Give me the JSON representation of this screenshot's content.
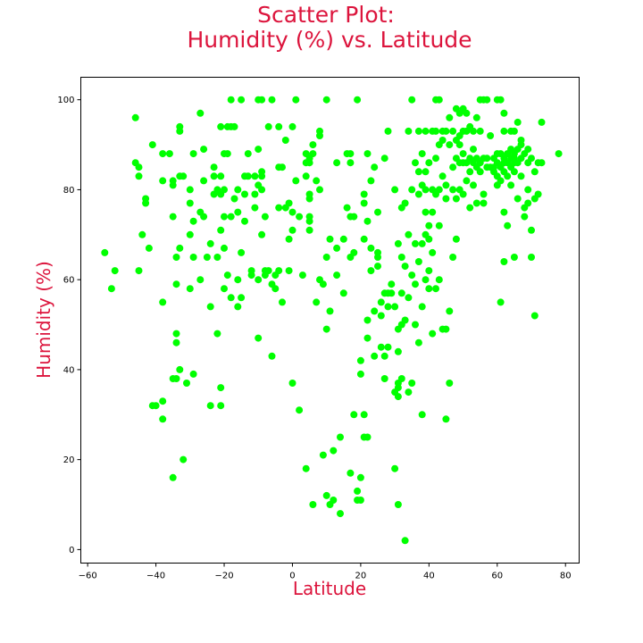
{
  "chart_data": {
    "type": "scatter",
    "title_line1": "Scatter Plot:",
    "title_line2": "Humidity (%) vs. Latitude",
    "xlabel": "Latitude",
    "ylabel": "Humidity (%)",
    "xlim": [
      -62,
      84
    ],
    "ylim": [
      -3,
      105
    ],
    "xticks": [
      -60,
      -40,
      -20,
      0,
      20,
      40,
      60,
      80
    ],
    "yticks": [
      0,
      20,
      40,
      60,
      80,
      100
    ],
    "grid": false,
    "colors": {
      "label": "#dc143c",
      "marker": "#00ff00",
      "axis": "#000000"
    },
    "points": [
      [
        -55,
        66
      ],
      [
        -53,
        58
      ],
      [
        -52,
        62
      ],
      [
        -46,
        96
      ],
      [
        -46,
        86
      ],
      [
        -45,
        85
      ],
      [
        -45,
        83
      ],
      [
        -45,
        62
      ],
      [
        -44,
        70
      ],
      [
        -43,
        78
      ],
      [
        -43,
        77
      ],
      [
        -42,
        67
      ],
      [
        -41,
        90
      ],
      [
        -41,
        32
      ],
      [
        -40,
        32
      ],
      [
        -38,
        88
      ],
      [
        -38,
        82
      ],
      [
        -38,
        55
      ],
      [
        -38,
        33
      ],
      [
        -38,
        29
      ],
      [
        -36,
        88
      ],
      [
        -35,
        82
      ],
      [
        -35,
        81
      ],
      [
        -35,
        74
      ],
      [
        -35,
        38
      ],
      [
        -35,
        16
      ],
      [
        -34,
        38
      ],
      [
        -34,
        65
      ],
      [
        -34,
        59
      ],
      [
        -34,
        48
      ],
      [
        -34,
        46
      ],
      [
        -33,
        94
      ],
      [
        -33,
        93
      ],
      [
        -33,
        83
      ],
      [
        -33,
        67
      ],
      [
        -33,
        40
      ],
      [
        -32,
        83
      ],
      [
        -32,
        20
      ],
      [
        -31,
        37
      ],
      [
        -30,
        80
      ],
      [
        -30,
        77
      ],
      [
        -30,
        70
      ],
      [
        -30,
        58
      ],
      [
        -29,
        88
      ],
      [
        -29,
        73
      ],
      [
        -29,
        65
      ],
      [
        -29,
        39
      ],
      [
        -27,
        97
      ],
      [
        -27,
        75
      ],
      [
        -27,
        60
      ],
      [
        -26,
        89
      ],
      [
        -26,
        82
      ],
      [
        -26,
        74
      ],
      [
        -25,
        65
      ],
      [
        -24,
        68
      ],
      [
        -24,
        32
      ],
      [
        -24,
        54
      ],
      [
        -23,
        83
      ],
      [
        -23,
        79
      ],
      [
        -23,
        85
      ],
      [
        -22,
        80
      ],
      [
        -22,
        65
      ],
      [
        -22,
        48
      ],
      [
        -21,
        94
      ],
      [
        -21,
        83
      ],
      [
        -21,
        79
      ],
      [
        -21,
        71
      ],
      [
        -21,
        36
      ],
      [
        -21,
        32
      ],
      [
        -20,
        88
      ],
      [
        -20,
        80
      ],
      [
        -20,
        74
      ],
      [
        -20,
        67
      ],
      [
        -20,
        58
      ],
      [
        -19,
        94
      ],
      [
        -19,
        88
      ],
      [
        -19,
        61
      ],
      [
        -18,
        100
      ],
      [
        -18,
        94
      ],
      [
        -18,
        74
      ],
      [
        -18,
        56
      ],
      [
        -17,
        94
      ],
      [
        -17,
        78
      ],
      [
        -16,
        80
      ],
      [
        -16,
        75
      ],
      [
        -16,
        60
      ],
      [
        -16,
        54
      ],
      [
        -15,
        100
      ],
      [
        -15,
        56
      ],
      [
        -15,
        66
      ],
      [
        -14,
        83
      ],
      [
        -14,
        79
      ],
      [
        -14,
        73
      ],
      [
        -13,
        88
      ],
      [
        -13,
        83
      ],
      [
        -12,
        62
      ],
      [
        -12,
        61
      ],
      [
        -11,
        83
      ],
      [
        -11,
        79
      ],
      [
        -11,
        76
      ],
      [
        -10,
        100
      ],
      [
        -10,
        89
      ],
      [
        -10,
        81
      ],
      [
        -10,
        60
      ],
      [
        -10,
        47
      ],
      [
        -9,
        100
      ],
      [
        -9,
        84
      ],
      [
        -9,
        83
      ],
      [
        -9,
        80
      ],
      [
        -9,
        70
      ],
      [
        -8,
        62
      ],
      [
        -8,
        61
      ],
      [
        -8,
        74
      ],
      [
        -7,
        94
      ],
      [
        -7,
        62
      ],
      [
        -6,
        100
      ],
      [
        -6,
        59
      ],
      [
        -6,
        43
      ],
      [
        -5,
        58
      ],
      [
        -5,
        61
      ],
      [
        -4,
        85
      ],
      [
        -4,
        94
      ],
      [
        -4,
        76
      ],
      [
        -4,
        62
      ],
      [
        -3,
        85
      ],
      [
        -3,
        55
      ],
      [
        -2,
        76
      ],
      [
        -2,
        91
      ],
      [
        -1,
        77
      ],
      [
        -1,
        62
      ],
      [
        -1,
        69
      ],
      [
        0,
        94
      ],
      [
        0,
        75
      ],
      [
        0,
        71
      ],
      [
        0,
        37
      ],
      [
        1,
        100
      ],
      [
        1,
        82
      ],
      [
        2,
        31
      ],
      [
        2,
        74
      ],
      [
        3,
        61
      ],
      [
        4,
        88
      ],
      [
        4,
        86
      ],
      [
        4,
        83
      ],
      [
        4,
        18
      ],
      [
        5,
        87
      ],
      [
        5,
        86
      ],
      [
        5,
        79
      ],
      [
        5,
        78
      ],
      [
        5,
        74
      ],
      [
        5,
        73
      ],
      [
        5,
        71
      ],
      [
        6,
        90
      ],
      [
        6,
        88
      ],
      [
        6,
        10
      ],
      [
        7,
        55
      ],
      [
        7,
        82
      ],
      [
        8,
        92
      ],
      [
        8,
        93
      ],
      [
        8,
        80
      ],
      [
        8,
        60
      ],
      [
        9,
        59
      ],
      [
        9,
        21
      ],
      [
        10,
        100
      ],
      [
        10,
        49
      ],
      [
        10,
        12
      ],
      [
        10,
        65
      ],
      [
        11,
        69
      ],
      [
        11,
        53
      ],
      [
        11,
        10
      ],
      [
        12,
        22
      ],
      [
        12,
        11
      ],
      [
        13,
        86
      ],
      [
        13,
        67
      ],
      [
        13,
        61
      ],
      [
        14,
        8
      ],
      [
        14,
        25
      ],
      [
        15,
        57
      ],
      [
        15,
        69
      ],
      [
        16,
        88
      ],
      [
        16,
        76
      ],
      [
        17,
        88
      ],
      [
        17,
        86
      ],
      [
        17,
        74
      ],
      [
        17,
        65
      ],
      [
        17,
        17
      ],
      [
        18,
        30
      ],
      [
        18,
        66
      ],
      [
        18,
        74
      ],
      [
        19,
        100
      ],
      [
        19,
        13
      ],
      [
        19,
        11
      ],
      [
        20,
        11
      ],
      [
        20,
        42
      ],
      [
        20,
        39
      ],
      [
        20,
        16
      ],
      [
        21,
        79
      ],
      [
        21,
        77
      ],
      [
        21,
        69
      ],
      [
        21,
        30
      ],
      [
        21,
        25
      ],
      [
        22,
        73
      ],
      [
        22,
        88
      ],
      [
        22,
        51
      ],
      [
        22,
        47
      ],
      [
        22,
        25
      ],
      [
        23,
        82
      ],
      [
        23,
        67
      ],
      [
        23,
        62
      ],
      [
        24,
        85
      ],
      [
        24,
        53
      ],
      [
        24,
        43
      ],
      [
        25,
        75
      ],
      [
        25,
        66
      ],
      [
        25,
        65
      ],
      [
        25,
        63
      ],
      [
        26,
        55
      ],
      [
        26,
        52
      ],
      [
        26,
        45
      ],
      [
        27,
        87
      ],
      [
        27,
        57
      ],
      [
        27,
        43
      ],
      [
        27,
        38
      ],
      [
        28,
        93
      ],
      [
        28,
        57
      ],
      [
        28,
        54
      ],
      [
        28,
        45
      ],
      [
        29,
        59
      ],
      [
        29,
        57
      ],
      [
        30,
        80
      ],
      [
        30,
        54
      ],
      [
        30,
        35
      ],
      [
        30,
        18
      ],
      [
        31,
        68
      ],
      [
        31,
        49
      ],
      [
        31,
        44
      ],
      [
        31,
        37
      ],
      [
        31,
        36
      ],
      [
        31,
        34
      ],
      [
        31,
        10
      ],
      [
        32,
        76
      ],
      [
        32,
        65
      ],
      [
        32,
        57
      ],
      [
        32,
        50
      ],
      [
        32,
        38
      ],
      [
        33,
        77
      ],
      [
        33,
        63
      ],
      [
        33,
        51
      ],
      [
        33,
        2
      ],
      [
        34,
        93
      ],
      [
        34,
        70
      ],
      [
        34,
        56
      ],
      [
        34,
        35
      ],
      [
        35,
        100
      ],
      [
        35,
        80
      ],
      [
        35,
        61
      ],
      [
        35,
        37
      ],
      [
        36,
        86
      ],
      [
        36,
        68
      ],
      [
        36,
        59
      ],
      [
        36,
        50
      ],
      [
        37,
        93
      ],
      [
        37,
        84
      ],
      [
        37,
        79
      ],
      [
        37,
        64
      ],
      [
        37,
        46
      ],
      [
        38,
        88
      ],
      [
        38,
        81
      ],
      [
        38,
        68
      ],
      [
        38,
        54
      ],
      [
        38,
        30
      ],
      [
        39,
        93
      ],
      [
        39,
        84
      ],
      [
        39,
        80
      ],
      [
        39,
        75
      ],
      [
        39,
        70
      ],
      [
        39,
        60
      ],
      [
        40,
        86
      ],
      [
        40,
        72
      ],
      [
        40,
        69
      ],
      [
        40,
        62
      ],
      [
        40,
        58
      ],
      [
        41,
        93
      ],
      [
        41,
        80
      ],
      [
        41,
        75
      ],
      [
        41,
        66
      ],
      [
        41,
        48
      ],
      [
        42,
        100
      ],
      [
        42,
        93
      ],
      [
        42,
        87
      ],
      [
        42,
        79
      ],
      [
        42,
        58
      ],
      [
        43,
        100
      ],
      [
        43,
        90
      ],
      [
        43,
        80
      ],
      [
        43,
        72
      ],
      [
        43,
        60
      ],
      [
        44,
        93
      ],
      [
        44,
        91
      ],
      [
        44,
        83
      ],
      [
        44,
        49
      ],
      [
        45,
        93
      ],
      [
        45,
        81
      ],
      [
        45,
        78
      ],
      [
        45,
        49
      ],
      [
        45,
        29
      ],
      [
        46,
        96
      ],
      [
        46,
        90
      ],
      [
        46,
        53
      ],
      [
        46,
        37
      ],
      [
        47,
        93
      ],
      [
        47,
        85
      ],
      [
        47,
        80
      ],
      [
        47,
        65
      ],
      [
        48,
        98
      ],
      [
        48,
        91
      ],
      [
        48,
        87
      ],
      [
        48,
        78
      ],
      [
        48,
        69
      ],
      [
        49,
        97
      ],
      [
        49,
        92
      ],
      [
        49,
        90
      ],
      [
        49,
        86
      ],
      [
        49,
        80
      ],
      [
        50,
        98
      ],
      [
        50,
        93
      ],
      [
        50,
        88
      ],
      [
        50,
        86
      ],
      [
        50,
        79
      ],
      [
        51,
        97
      ],
      [
        51,
        93
      ],
      [
        51,
        86
      ],
      [
        51,
        82
      ],
      [
        52,
        94
      ],
      [
        52,
        87
      ],
      [
        52,
        84
      ],
      [
        52,
        76
      ],
      [
        53,
        93
      ],
      [
        53,
        89
      ],
      [
        53,
        86
      ],
      [
        53,
        81
      ],
      [
        54,
        96
      ],
      [
        54,
        87
      ],
      [
        54,
        85
      ],
      [
        54,
        77
      ],
      [
        55,
        100
      ],
      [
        55,
        93
      ],
      [
        55,
        86
      ],
      [
        55,
        84
      ],
      [
        56,
        100
      ],
      [
        56,
        87
      ],
      [
        56,
        79
      ],
      [
        56,
        77
      ],
      [
        57,
        100
      ],
      [
        57,
        87
      ],
      [
        57,
        85
      ],
      [
        58,
        92
      ],
      [
        58,
        85
      ],
      [
        59,
        87
      ],
      [
        59,
        85
      ],
      [
        59,
        84
      ],
      [
        60,
        100
      ],
      [
        60,
        88
      ],
      [
        60,
        86
      ],
      [
        60,
        83
      ],
      [
        60,
        81
      ],
      [
        61,
        100
      ],
      [
        61,
        88
      ],
      [
        61,
        85
      ],
      [
        61,
        82
      ],
      [
        61,
        55
      ],
      [
        62,
        97
      ],
      [
        62,
        93
      ],
      [
        62,
        87
      ],
      [
        62,
        86
      ],
      [
        62,
        84
      ],
      [
        62,
        64
      ],
      [
        62,
        75
      ],
      [
        63,
        88
      ],
      [
        63,
        86
      ],
      [
        63,
        83
      ],
      [
        63,
        72
      ],
      [
        64,
        93
      ],
      [
        64,
        89
      ],
      [
        64,
        87
      ],
      [
        64,
        85
      ],
      [
        64,
        81
      ],
      [
        65,
        93
      ],
      [
        65,
        88
      ],
      [
        65,
        87
      ],
      [
        65,
        86
      ],
      [
        65,
        84
      ],
      [
        65,
        65
      ],
      [
        66,
        95
      ],
      [
        66,
        89
      ],
      [
        66,
        86
      ],
      [
        66,
        78
      ],
      [
        67,
        91
      ],
      [
        67,
        90
      ],
      [
        67,
        87
      ],
      [
        67,
        83
      ],
      [
        68,
        88
      ],
      [
        68,
        76
      ],
      [
        68,
        74
      ],
      [
        69,
        89
      ],
      [
        69,
        86
      ],
      [
        69,
        80
      ],
      [
        69,
        77
      ],
      [
        70,
        87
      ],
      [
        70,
        71
      ],
      [
        70,
        65
      ],
      [
        71,
        84
      ],
      [
        71,
        78
      ],
      [
        71,
        52
      ],
      [
        72,
        79
      ],
      [
        72,
        86
      ],
      [
        73,
        95
      ],
      [
        73,
        86
      ],
      [
        78,
        88
      ]
    ]
  }
}
